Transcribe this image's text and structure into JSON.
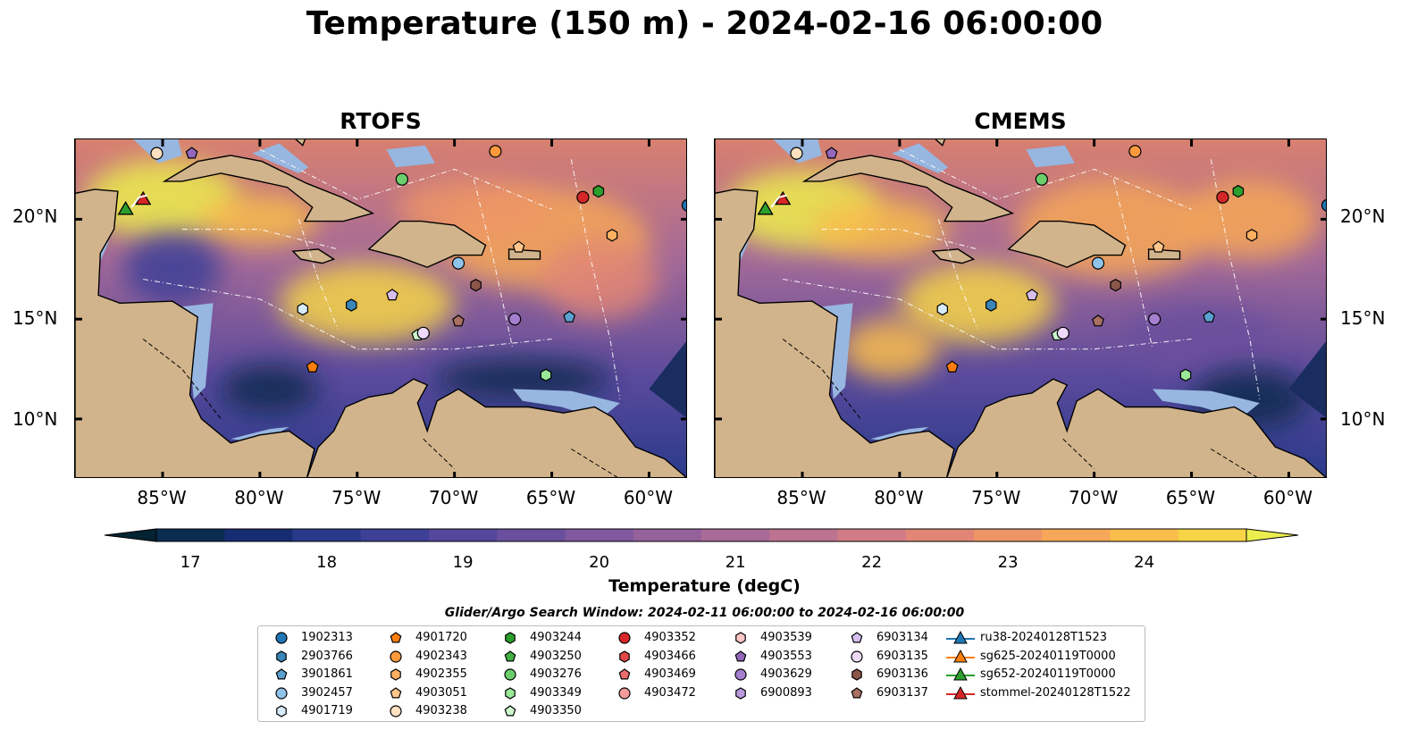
{
  "title": "Temperature (150 m) - 2024-02-16 06:00:00",
  "panels": [
    {
      "title": "RTOFS"
    },
    {
      "title": "CMEMS"
    }
  ],
  "axes": {
    "lon_ticks": [
      "85°W",
      "80°W",
      "75°W",
      "70°W",
      "65°W",
      "60°W"
    ],
    "lat_ticks": [
      "20°N",
      "15°N",
      "10°N"
    ],
    "lon_range": [
      -89.5,
      -58.0
    ],
    "lat_range": [
      7.0,
      24.0
    ]
  },
  "colorbar": {
    "label": "Temperature (degC)",
    "ticks": [
      "17",
      "18",
      "19",
      "20",
      "21",
      "22",
      "23",
      "24"
    ],
    "range": [
      16.75,
      24.75
    ],
    "colormap": "thermal",
    "colors": [
      "#042333",
      "#0b2c4f",
      "#172d73",
      "#2a3a8a",
      "#3e3f97",
      "#55479c",
      "#6a4f9e",
      "#7f589e",
      "#94619b",
      "#a86a96",
      "#bd7390",
      "#d07b85",
      "#e18676",
      "#ee9566",
      "#f6a757",
      "#f9bd4b",
      "#f6d446",
      "#eced4e"
    ]
  },
  "search_window": "Glider/Argo Search Window: 2024-02-11 06:00:00 to 2024-02-16 06:00:00",
  "legend": [
    {
      "label": "1902313",
      "marker": "circle",
      "color": "#1f77b4"
    },
    {
      "label": "2903766",
      "marker": "hexagon",
      "color": "#3a86b8"
    },
    {
      "label": "3901861",
      "marker": "pentagon",
      "color": "#5aa0d0"
    },
    {
      "label": "3902457",
      "marker": "circle",
      "color": "#8fc3ea"
    },
    {
      "label": "4901719",
      "marker": "hexagon",
      "color": "#d6ecfa"
    },
    {
      "label": "4901720",
      "marker": "pentagon",
      "color": "#ff7f0e"
    },
    {
      "label": "4902343",
      "marker": "circle",
      "color": "#ff9a3c"
    },
    {
      "label": "4902355",
      "marker": "hexagon",
      "color": "#ffb060"
    },
    {
      "label": "4903051",
      "marker": "pentagon",
      "color": "#ffc68c"
    },
    {
      "label": "4903238",
      "marker": "circle",
      "color": "#ffe0c0"
    },
    {
      "label": "4903244",
      "marker": "hexagon",
      "color": "#2ca02c"
    },
    {
      "label": "4903250",
      "marker": "pentagon",
      "color": "#40b040"
    },
    {
      "label": "4903276",
      "marker": "circle",
      "color": "#6ccf6c"
    },
    {
      "label": "4903349",
      "marker": "hexagon",
      "color": "#98e898"
    },
    {
      "label": "4903350",
      "marker": "pentagon",
      "color": "#ccf7cc"
    },
    {
      "label": "4903352",
      "marker": "circle",
      "color": "#d62728"
    },
    {
      "label": "4903466",
      "marker": "hexagon",
      "color": "#e04848"
    },
    {
      "label": "4903469",
      "marker": "pentagon",
      "color": "#ec6d6d"
    },
    {
      "label": "4903472",
      "marker": "circle",
      "color": "#f59b9b"
    },
    {
      "label": "4903539",
      "marker": "hexagon",
      "color": "#fcc6c6"
    },
    {
      "label": "4903553",
      "marker": "pentagon",
      "color": "#9467bd"
    },
    {
      "label": "4903629",
      "marker": "circle",
      "color": "#a57fd0"
    },
    {
      "label": "6900893",
      "marker": "hexagon",
      "color": "#bb9ae0"
    },
    {
      "label": "6903134",
      "marker": "pentagon",
      "color": "#d8bff0"
    },
    {
      "label": "6903135",
      "marker": "circle",
      "color": "#efd9fa"
    },
    {
      "label": "6903136",
      "marker": "hexagon",
      "color": "#8c564b"
    },
    {
      "label": "6903137",
      "marker": "pentagon",
      "color": "#a86f63"
    },
    {
      "label": "ru38-20240128T1523",
      "marker": "triangle-line",
      "color": "#1f77b4"
    },
    {
      "label": "sg625-20240119T0000",
      "marker": "triangle-line",
      "color": "#ff7f0e"
    },
    {
      "label": "sg652-20240119T0000",
      "marker": "triangle-line",
      "color": "#2ca02c"
    },
    {
      "label": "stommel-20240128T1522",
      "marker": "triangle-line",
      "color": "#d62728"
    }
  ],
  "floats": [
    {
      "id": "1902313",
      "lon": -58.0,
      "lat": 20.7
    },
    {
      "id": "3902457",
      "lon": -69.8,
      "lat": 17.8
    },
    {
      "id": "2903766",
      "lon": -75.3,
      "lat": 15.7
    },
    {
      "id": "3901861",
      "lon": -64.1,
      "lat": 15.1
    },
    {
      "id": "4901719",
      "lon": -77.8,
      "lat": 15.5
    },
    {
      "id": "4901720",
      "lon": -77.3,
      "lat": 12.6
    },
    {
      "id": "4902343",
      "lon": -67.9,
      "lat": 23.4
    },
    {
      "id": "4902355",
      "lon": -61.9,
      "lat": 19.2
    },
    {
      "id": "4903051",
      "lon": -66.7,
      "lat": 18.6
    },
    {
      "id": "4903238",
      "lon": -85.3,
      "lat": 23.3
    },
    {
      "id": "4903244",
      "lon": -62.6,
      "lat": 21.4
    },
    {
      "id": "4903276",
      "lon": -72.7,
      "lat": 22.0
    },
    {
      "id": "4903349",
      "lon": -65.3,
      "lat": 12.2
    },
    {
      "id": "4903350",
      "lon": -71.9,
      "lat": 14.2
    },
    {
      "id": "4903352",
      "lon": -63.4,
      "lat": 21.1
    },
    {
      "id": "4903553",
      "lon": -83.5,
      "lat": 23.3
    },
    {
      "id": "4903629",
      "lon": -66.9,
      "lat": 15.0
    },
    {
      "id": "6903134",
      "lon": -73.2,
      "lat": 16.2
    },
    {
      "id": "6903135",
      "lon": -71.6,
      "lat": 14.3
    },
    {
      "id": "6903136",
      "lon": -68.9,
      "lat": 16.7
    },
    {
      "id": "6903137",
      "lon": -69.8,
      "lat": 14.9
    }
  ],
  "gliders": [
    {
      "id": "sg652-20240119T0000",
      "lon": -86.9,
      "lat": 20.5
    },
    {
      "id": "stommel-20240128T1522",
      "lon": -86.0,
      "lat": 21.0
    }
  ]
}
